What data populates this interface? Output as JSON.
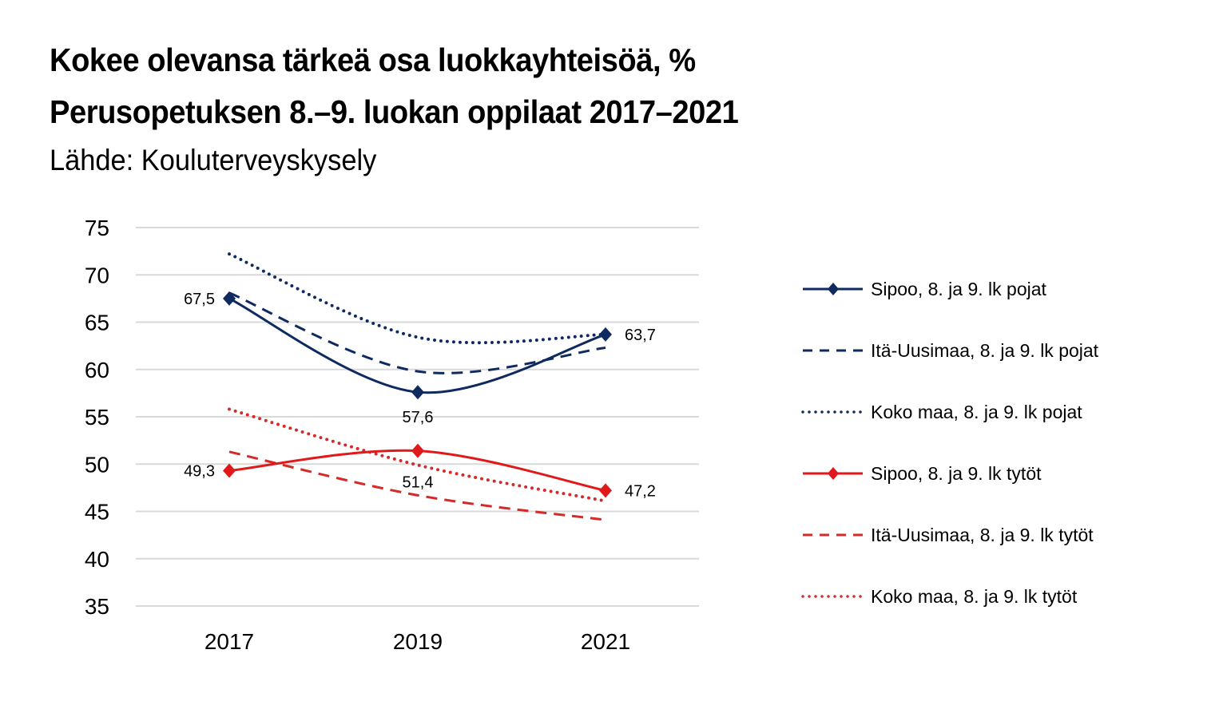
{
  "chart_data": {
    "type": "line",
    "title": "Kokee olevansa tärkeä osa luokkayhteisöä, %",
    "subtitle": "Perusopetuksen 8.–9. luokan oppilaat 2017–2021",
    "source": "Lähde: Kouluterveyskysely",
    "xlabel": "",
    "ylabel": "",
    "categories": [
      "2017",
      "2019",
      "2021"
    ],
    "ylim": [
      35,
      75
    ],
    "yticks": [
      75,
      70,
      65,
      60,
      55,
      50,
      45,
      40,
      35
    ],
    "grid": true,
    "legend_position": "right",
    "series": [
      {
        "name": "Sipoo, 8. ja 9. lk pojat",
        "color": "#0f2a5f",
        "style": "solid",
        "marker": "diamond",
        "values": [
          67.5,
          57.6,
          63.7
        ],
        "labels": [
          "67,5",
          "57,6",
          "63,7"
        ]
      },
      {
        "name": "Itä-Uusimaa, 8. ja 9. lk pojat",
        "color": "#0f2a5f",
        "style": "dashed",
        "marker": "none",
        "values": [
          68.1,
          59.8,
          62.3
        ]
      },
      {
        "name": "Koko maa, 8. ja 9. lk pojat",
        "color": "#0f2a5f",
        "style": "dotted",
        "marker": "none",
        "values": [
          72.2,
          63.4,
          63.7
        ]
      },
      {
        "name": "Sipoo, 8. ja 9. lk tytöt",
        "color": "#e0191b",
        "style": "solid",
        "marker": "diamond",
        "values": [
          49.3,
          51.4,
          47.2
        ],
        "labels": [
          "49,3",
          "51,4",
          "47,2"
        ]
      },
      {
        "name": "Itä-Uusimaa, 8. ja 9. lk tytöt",
        "color": "#d42a2a",
        "style": "dashed",
        "marker": "none",
        "values": [
          51.3,
          46.7,
          44.1
        ]
      },
      {
        "name": "Koko maa, 8. ja 9. lk tytöt",
        "color": "#d42a2a",
        "style": "dotted",
        "marker": "none",
        "values": [
          55.8,
          49.9,
          46.1
        ]
      }
    ]
  }
}
